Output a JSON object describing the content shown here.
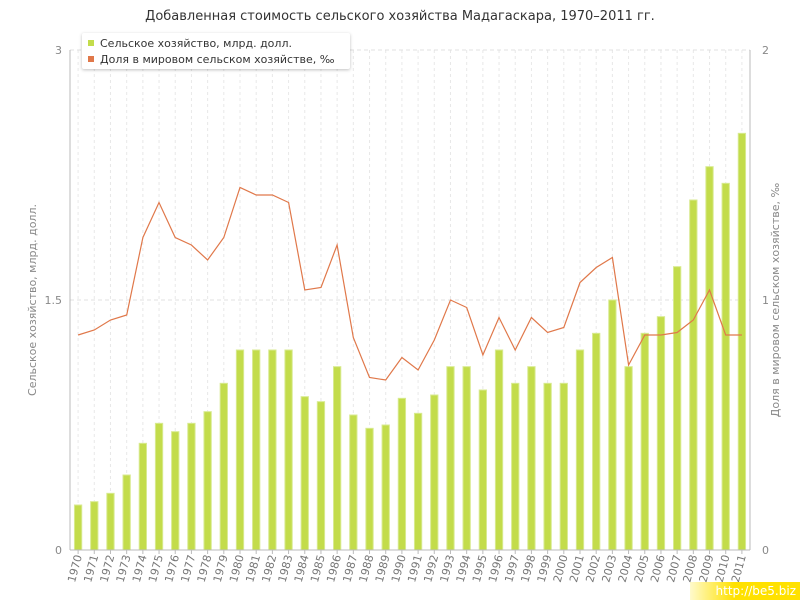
{
  "chart_data": {
    "type": "bar",
    "title": "Добавленная стоимость сельского хозяйства Мадагаскара, 1970–2011 гг.",
    "categories": [
      "1970",
      "1971",
      "1972",
      "1973",
      "1974",
      "1975",
      "1976",
      "1977",
      "1978",
      "1979",
      "1980",
      "1981",
      "1982",
      "1983",
      "1984",
      "1985",
      "1986",
      "1987",
      "1988",
      "1989",
      "1990",
      "1991",
      "1992",
      "1993",
      "1994",
      "1995",
      "1996",
      "1997",
      "1998",
      "1999",
      "2000",
      "2001",
      "2002",
      "2003",
      "2004",
      "2005",
      "2006",
      "2007",
      "2008",
      "2009",
      "2010",
      "2011"
    ],
    "series": [
      {
        "name": "Сельское хозяйство, млрд. долл.",
        "type": "bar",
        "axis": "left",
        "color": "#c3dc4b",
        "values": [
          0.27,
          0.29,
          0.34,
          0.45,
          0.64,
          0.76,
          0.71,
          0.76,
          0.83,
          1.0,
          1.2,
          1.2,
          1.2,
          1.2,
          0.92,
          0.89,
          1.1,
          0.81,
          0.73,
          0.75,
          0.91,
          0.82,
          0.93,
          1.1,
          1.1,
          0.96,
          1.2,
          1.0,
          1.1,
          1.0,
          1.0,
          1.2,
          1.3,
          1.5,
          1.1,
          1.3,
          1.4,
          1.7,
          2.1,
          2.3,
          2.2,
          2.5
        ]
      },
      {
        "name": "Доля в мировом сельском хозяйстве, ‰",
        "type": "line",
        "axis": "right",
        "color": "#e0784a",
        "values": [
          0.86,
          0.88,
          0.92,
          0.94,
          1.25,
          1.39,
          1.25,
          1.22,
          1.16,
          1.25,
          1.45,
          1.42,
          1.42,
          1.39,
          1.04,
          1.05,
          1.22,
          0.85,
          0.69,
          0.68,
          0.77,
          0.72,
          0.84,
          1.0,
          0.97,
          0.78,
          0.93,
          0.8,
          0.93,
          0.87,
          0.89,
          1.07,
          1.13,
          1.17,
          0.74,
          0.86,
          0.86,
          0.87,
          0.92,
          1.04,
          0.86,
          0.86
        ]
      }
    ],
    "y_left": {
      "label": "Сельское хозяйство, млрд. долл.",
      "min": 0,
      "max": 3,
      "ticks": [
        "0",
        "1.5",
        "3"
      ],
      "tick_values": [
        0,
        1.5,
        3
      ]
    },
    "y_right": {
      "label": "Доля в мировом сельском хозяйстве, ‰",
      "min": 0,
      "max": 2,
      "ticks": [
        "0",
        "1",
        "2"
      ],
      "tick_values": [
        0,
        1,
        2
      ]
    },
    "grid": true,
    "legend_position": "top-left"
  },
  "watermark": "http://be5.biz"
}
